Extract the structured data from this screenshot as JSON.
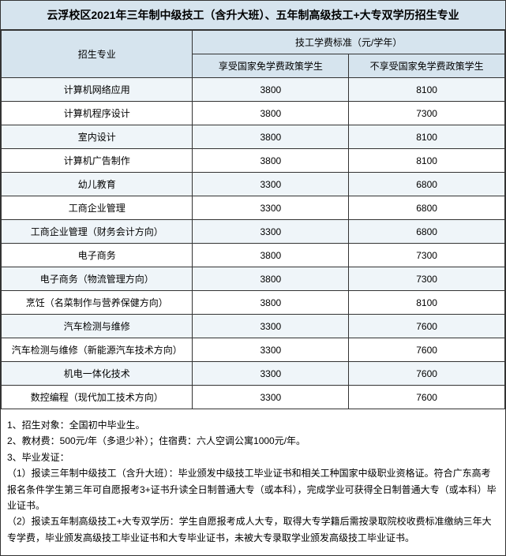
{
  "title": "云浮校区2021年三年制中级技工（含升大班）、五年制高级技工+大专双学历招生专业",
  "header": {
    "major": "招生专业",
    "fee_group": "技工学费标准（元/学年）",
    "fee_sub1": "享受国家免学费政策学生",
    "fee_sub2": "不享受国家免学费政策学生"
  },
  "rows": [
    {
      "major": "计算机网络应用",
      "fee1": "3800",
      "fee2": "8100"
    },
    {
      "major": "计算机程序设计",
      "fee1": "3800",
      "fee2": "7300"
    },
    {
      "major": "室内设计",
      "fee1": "3800",
      "fee2": "8100"
    },
    {
      "major": "计算机广告制作",
      "fee1": "3800",
      "fee2": "8100"
    },
    {
      "major": "幼儿教育",
      "fee1": "3300",
      "fee2": "6800"
    },
    {
      "major": "工商企业管理",
      "fee1": "3300",
      "fee2": "6800"
    },
    {
      "major": "工商企业管理（财务会计方向）",
      "fee1": "3300",
      "fee2": "6800"
    },
    {
      "major": "电子商务",
      "fee1": "3800",
      "fee2": "7300"
    },
    {
      "major": "电子商务（物流管理方向）",
      "fee1": "3800",
      "fee2": "7300"
    },
    {
      "major": "烹饪（名菜制作与营养保健方向）",
      "fee1": "3800",
      "fee2": "8100"
    },
    {
      "major": "汽车检测与维修",
      "fee1": "3300",
      "fee2": "7600"
    },
    {
      "major": "汽车检测与维修（新能源汽车技术方向）",
      "fee1": "3300",
      "fee2": "7600"
    },
    {
      "major": "机电一体化技术",
      "fee1": "3300",
      "fee2": "7600"
    },
    {
      "major": "数控编程（现代加工技术方向）",
      "fee1": "3300",
      "fee2": "7600"
    }
  ],
  "notes": [
    "1、招生对象：全国初中毕业生。",
    "2、教材费：500元/年（多退少补）；住宿费：六人空调公寓1000元/年。",
    "3、毕业发证：",
    "（1）报读三年制中级技工（含升大班）：毕业颁发中级技工毕业证书和相关工种国家中级职业资格证。符合广东高考报名条件学生第三年可自愿报考3+证书升读全日制普通大专（或本科），完成学业可获得全日制普通大专（或本科）毕业证书。",
    "（2）报读五年制高级技工+大专双学历：学生自愿报考成人大专，取得大专学籍后需按录取院校收费标准缴纳三年大专学费，毕业颁发高级技工毕业证书和大专毕业证书，未被大专录取学业颁发高级技工毕业证书。"
  ]
}
